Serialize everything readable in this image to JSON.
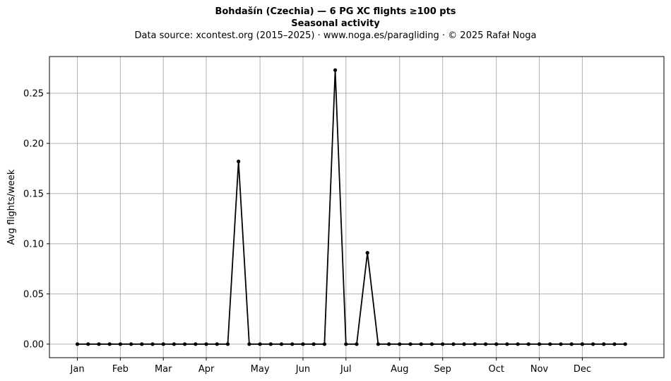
{
  "chart_data": {
    "type": "line",
    "title": "Bohdašín (Czechia)  —  6 PG XC flights ≥100 pts",
    "subtitle": "Seasonal activity",
    "source_line": "Data source: xcontest.org (2015–2025)  ·  www.noga.es/paragliding  ·  © 2025 Rafał Noga",
    "xlabel": "",
    "ylabel": "Avg flights/week",
    "ylim": [
      -0.0135,
      0.2865
    ],
    "yticks": [
      0.0,
      0.05,
      0.1,
      0.15,
      0.2,
      0.25
    ],
    "ytick_labels": [
      "0.00",
      "0.05",
      "0.10",
      "0.15",
      "0.20",
      "0.25"
    ],
    "xlim": [
      -2.6,
      54.6
    ],
    "xticks": [
      {
        "label": "Jan",
        "week": 0
      },
      {
        "label": "Feb",
        "week": 4
      },
      {
        "label": "Mar",
        "week": 8
      },
      {
        "label": "Apr",
        "week": 12
      },
      {
        "label": "May",
        "week": 17
      },
      {
        "label": "Jun",
        "week": 21
      },
      {
        "label": "Jul",
        "week": 25
      },
      {
        "label": "Aug",
        "week": 30
      },
      {
        "label": "Sep",
        "week": 34
      },
      {
        "label": "Oct",
        "week": 39
      },
      {
        "label": "Nov",
        "week": 43
      },
      {
        "label": "Dec",
        "week": 47
      }
    ],
    "grid": true,
    "line_color": "#000000",
    "grid_color": "#b0b0b0",
    "series": [
      {
        "x": [
          0,
          1,
          2,
          3,
          4,
          5,
          6,
          7,
          8,
          9,
          10,
          11,
          12,
          13,
          14,
          15,
          16,
          17,
          18,
          19,
          20,
          21,
          22,
          23,
          24,
          25,
          26,
          27,
          28,
          29,
          30,
          31,
          32,
          33,
          34,
          35,
          36,
          37,
          38,
          39,
          40,
          41,
          42,
          43,
          44,
          45,
          46,
          47,
          48,
          49,
          50,
          51
        ],
        "values": [
          0,
          0,
          0,
          0,
          0,
          0,
          0,
          0,
          0,
          0,
          0,
          0,
          0,
          0,
          0,
          0.182,
          0,
          0,
          0,
          0,
          0,
          0,
          0,
          0,
          0.273,
          0,
          0,
          0.091,
          0,
          0,
          0,
          0,
          0,
          0,
          0,
          0,
          0,
          0,
          0,
          0,
          0,
          0,
          0,
          0,
          0,
          0,
          0,
          0,
          0,
          0,
          0,
          0
        ]
      }
    ]
  }
}
